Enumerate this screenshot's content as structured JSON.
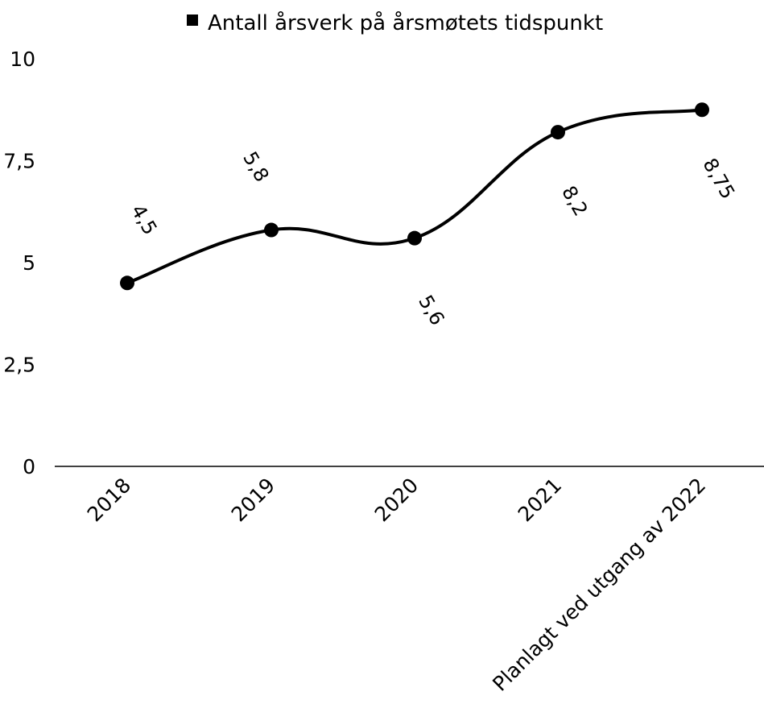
{
  "chart_data": {
    "type": "line",
    "categories": [
      "2018",
      "2019",
      "2020",
      "2021",
      "Planlagt ved utgang av 2022"
    ],
    "series": [
      {
        "name": "Antall årsverk på årsmøtets tidspunkt",
        "values": [
          4.5,
          5.8,
          5.6,
          8.2,
          8.75
        ],
        "data_labels": [
          "4,5",
          "5,8",
          "5,6",
          "8,2",
          "8,75"
        ],
        "color": "#000000"
      }
    ],
    "yticks": [
      "0",
      "2,5",
      "5",
      "7,5",
      "10"
    ],
    "ylim": [
      0,
      10
    ],
    "grid": false,
    "smooth": true,
    "legend_position": "top",
    "legend_marker": "square"
  }
}
